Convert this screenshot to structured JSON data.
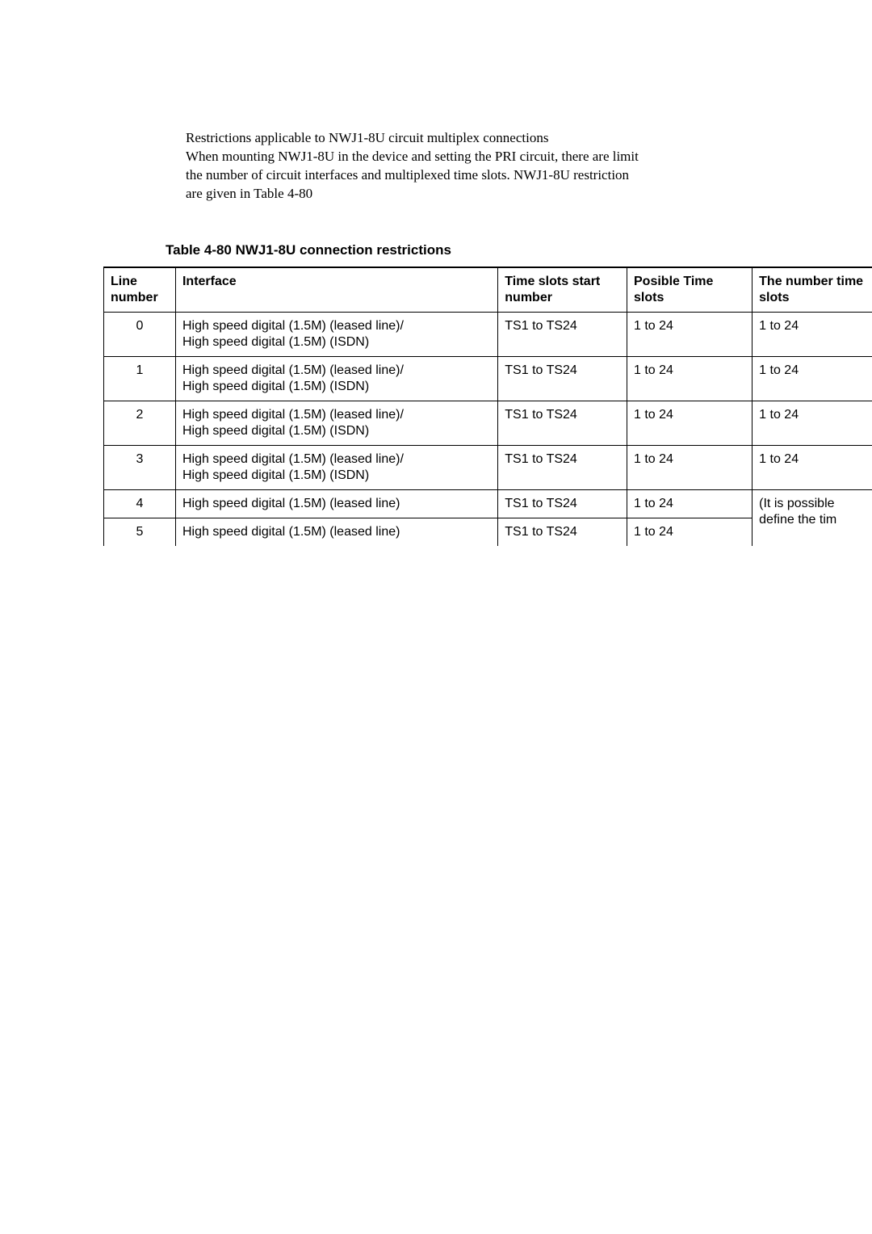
{
  "intro": {
    "line1": "Restrictions applicable to NWJ1-8U circuit multiplex connections",
    "line2": "When mounting NWJ1-8U in the device and setting the PRI circuit, there are limit",
    "line3": "the number of circuit interfaces and multiplexed time slots.  NWJ1-8U restriction",
    "line4": "are given in Table 4-80"
  },
  "table": {
    "caption": "Table 4-80  NWJ1-8U connection restrictions",
    "headers": {
      "line_number": "Line number",
      "interface": "Interface",
      "time_slots_start": "Time slots start number",
      "posible_time": "Posible Time slots",
      "number_time": "The number time slots"
    },
    "rows": {
      "r0": {
        "line": "0",
        "interface": "High speed digital (1.5M) (leased line)/\nHigh speed digital (1.5M) (ISDN)",
        "tss": "TS1 to TS24",
        "pts": "1 to 24",
        "nts": "1 to 24"
      },
      "r1": {
        "line": "1",
        "interface": "High speed digital (1.5M) (leased line)/\nHigh speed digital (1.5M) (ISDN)",
        "tss": "TS1 to TS24",
        "pts": "1 to 24",
        "nts": "1 to 24"
      },
      "r2": {
        "line": "2",
        "interface": "High speed digital (1.5M) (leased line)/\nHigh speed digital (1.5M) (ISDN)",
        "tss": "TS1 to TS24",
        "pts": "1 to 24",
        "nts": "1 to 24"
      },
      "r3": {
        "line": "3",
        "interface": "High speed digital (1.5M) (leased line)/\nHigh speed digital (1.5M) (ISDN)",
        "tss": "TS1 to TS24",
        "pts": "1 to 24",
        "nts": "1 to 24"
      },
      "r4": {
        "line": "4",
        "interface": "High speed digital (1.5M) (leased line)",
        "tss": "TS1 to TS24",
        "pts": "1 to 24",
        "nts_merged": "(It is possible define the tim"
      },
      "r5": {
        "line": "5",
        "interface": "High speed digital (1.5M) (leased line)",
        "tss": "TS1 to TS24",
        "pts": "1 to 24"
      }
    }
  }
}
